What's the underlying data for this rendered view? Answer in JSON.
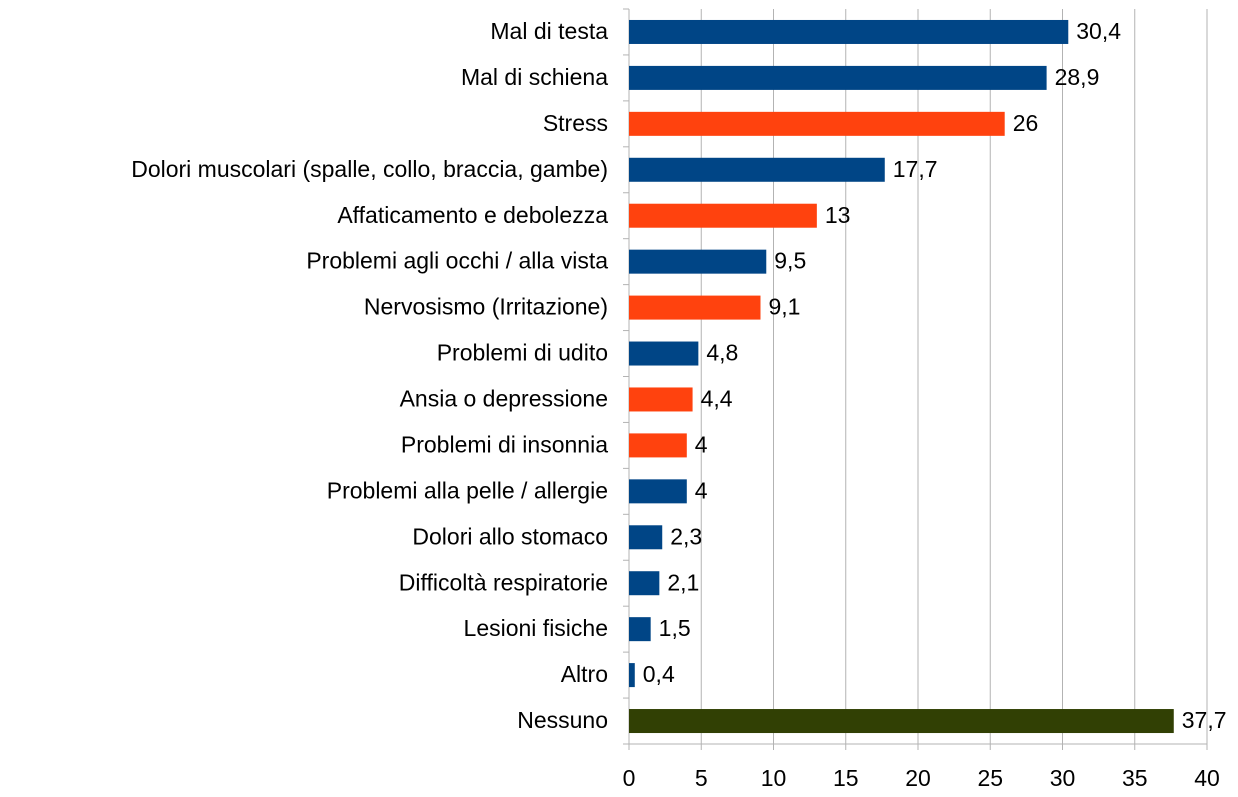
{
  "chart_data": {
    "type": "hbar",
    "categories": [
      "Mal di testa",
      "Mal di schiena",
      "Stress",
      "Dolori muscolari (spalle, collo, braccia, gambe)",
      "Affaticamento e debolezza",
      "Problemi agli occhi / alla vista",
      "Nervosismo (Irritazione)",
      "Problemi di udito",
      "Ansia o depressione",
      "Problemi di insonnia",
      "Problemi alla pelle / allergie",
      "Dolori allo stomaco",
      "Difficoltà respiratorie",
      "Lesioni fisiche",
      "Altro",
      "Nessuno"
    ],
    "values": [
      30.4,
      28.9,
      26,
      17.7,
      13,
      9.5,
      9.1,
      4.8,
      4.4,
      4,
      4,
      2.3,
      2.1,
      1.5,
      0.4,
      37.7
    ],
    "value_labels": [
      "30,4",
      "28,9",
      "26",
      "17,7",
      "13",
      "9,5",
      "9,1",
      "4,8",
      "4,4",
      "4",
      "4",
      "2,3",
      "2,1",
      "1,5",
      "0,4",
      "37,7"
    ],
    "colors": [
      "#004586",
      "#004586",
      "#ff420e",
      "#004586",
      "#ff420e",
      "#004586",
      "#ff420e",
      "#004586",
      "#ff420e",
      "#ff420e",
      "#004586",
      "#004586",
      "#004586",
      "#004586",
      "#004586",
      "#314004"
    ],
    "xlim": [
      0,
      40
    ],
    "xticks": [
      0,
      5,
      10,
      15,
      20,
      25,
      30,
      35,
      40
    ],
    "grid": true
  }
}
